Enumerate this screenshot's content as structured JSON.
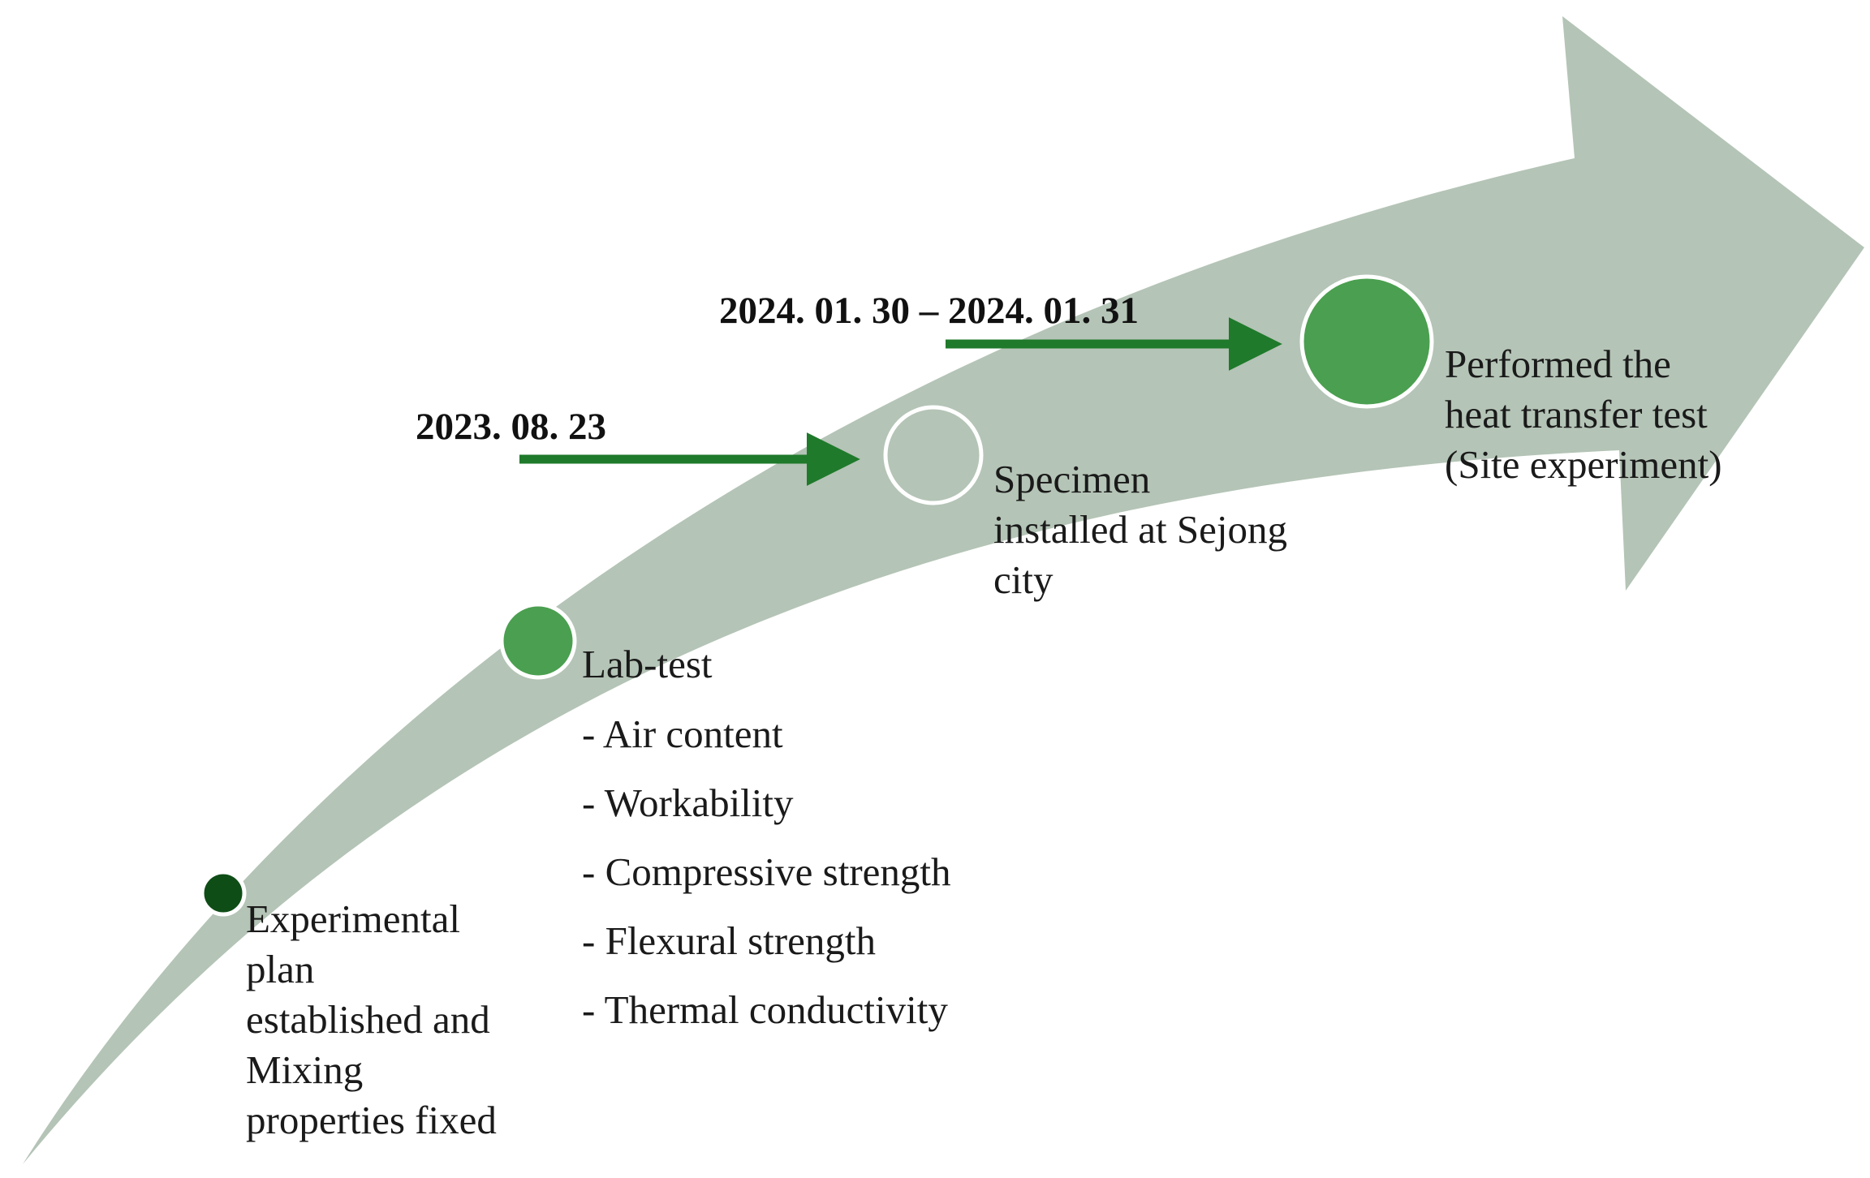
{
  "colors": {
    "arrow_band": "#b4c4b6",
    "connector_arrow": "#1f7a2b",
    "node_dark": "#0f4d17",
    "node_green": "#4b9f50",
    "node_empty": "#b4c4b6",
    "node_stroke": "#ffffff"
  },
  "nodes": [
    {
      "name": "stage-1-node",
      "fill": "node_dark"
    },
    {
      "name": "stage-2-node",
      "fill": "node_green"
    },
    {
      "name": "stage-3-node",
      "fill": "node_empty"
    },
    {
      "name": "stage-4-node",
      "fill": "node_green"
    }
  ],
  "stages": {
    "plan": {
      "text": "Experimental\nplan\nestablished and\nMixing\nproperties fixed"
    },
    "lab": {
      "title": "Lab-test",
      "items": [
        "- Air content",
        "- Workability",
        "- Compressive strength",
        "- Flexural strength",
        "- Thermal conductivity"
      ]
    },
    "install": {
      "text": "Specimen\ninstalled at Sejong\ncity",
      "date": "2023. 08. 23"
    },
    "site": {
      "text": "Performed the\nheat transfer test\n(Site experiment)",
      "date": "2024. 01. 30 – 2024. 01. 31"
    }
  }
}
